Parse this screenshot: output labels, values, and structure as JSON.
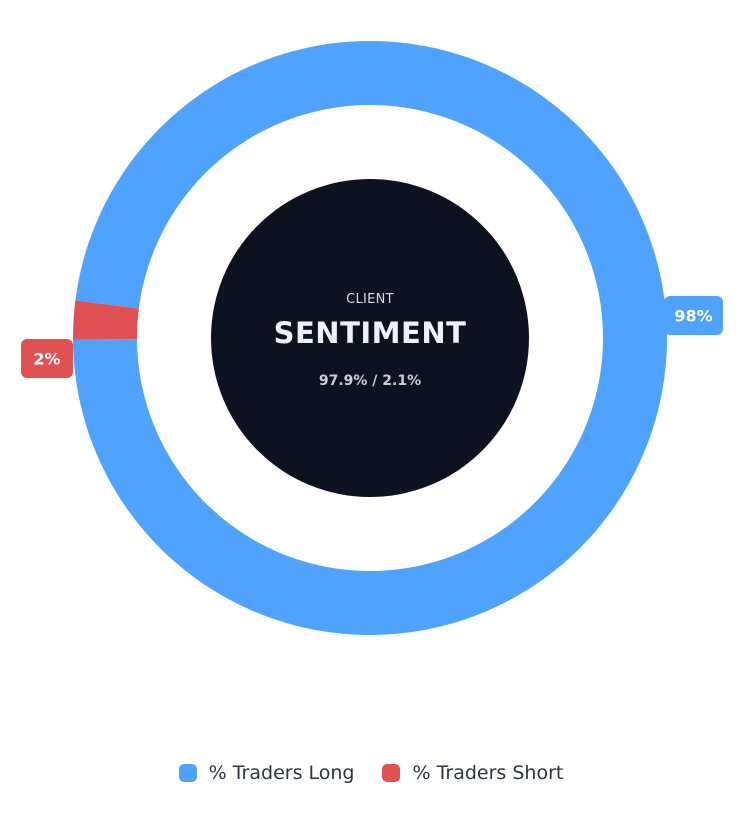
{
  "chart_data": {
    "type": "pie",
    "variant": "donut",
    "categories": [
      "% Traders Long",
      "% Traders Short"
    ],
    "values": [
      97.9,
      2.1
    ],
    "colors": [
      "#4fa3fd",
      "#e15152"
    ],
    "data_labels": [
      "98%",
      "2%"
    ],
    "center": {
      "label_small": "CLIENT",
      "label_big": "SENTIMENT",
      "ratio_text": "97.9% / 2.1%",
      "background": "#0c1220"
    },
    "legend_position": "bottom-center"
  },
  "legend": {
    "items": [
      {
        "label": "% Traders Long",
        "color": "#4fa3fd"
      },
      {
        "label": "% Traders Short",
        "color": "#e15152"
      }
    ]
  }
}
